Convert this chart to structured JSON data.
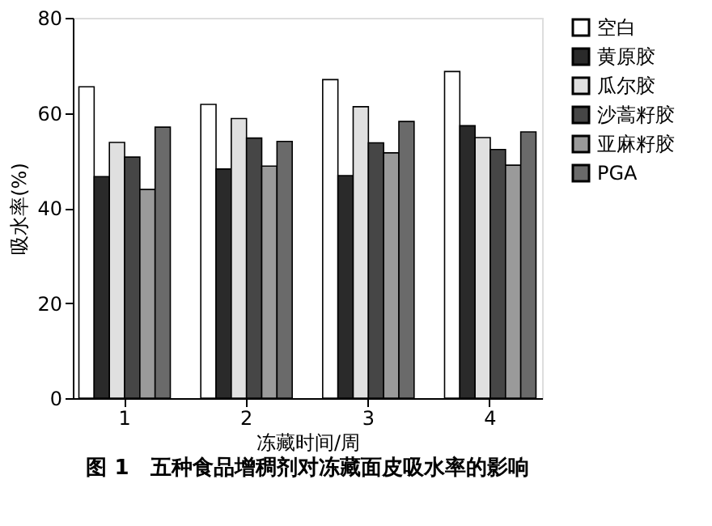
{
  "chart_data": {
    "type": "bar",
    "title": "图 1　五种食品增稠剂对冻藏面皮吸水率的影响",
    "xlabel": "冻藏时间/周",
    "ylabel": "吸水率(%)",
    "categories": [
      "1",
      "2",
      "3",
      "4"
    ],
    "series": [
      {
        "name": "空白",
        "color": "#ffffff",
        "values": [
          65.5,
          61.8,
          67.0,
          68.7
        ]
      },
      {
        "name": "黄原胶",
        "color": "#2a2a2a",
        "values": [
          46.6,
          48.2,
          46.8,
          57.3
        ]
      },
      {
        "name": "瓜尔胶",
        "color": "#e0e0e0",
        "values": [
          53.8,
          58.8,
          61.3,
          54.8
        ]
      },
      {
        "name": "沙蒿籽胶",
        "color": "#464646",
        "values": [
          50.7,
          54.7,
          53.7,
          52.3
        ]
      },
      {
        "name": "亚麻籽胶",
        "color": "#9a9a9a",
        "values": [
          43.9,
          48.8,
          51.6,
          49.0
        ]
      },
      {
        "name": "PGA",
        "color": "#6a6a6a",
        "values": [
          57.0,
          54.0,
          58.2,
          56.0
        ]
      }
    ],
    "ylim": [
      0,
      80
    ],
    "yticks": [
      0,
      20,
      40,
      60,
      80
    ],
    "grid": false,
    "legend": "top right"
  }
}
